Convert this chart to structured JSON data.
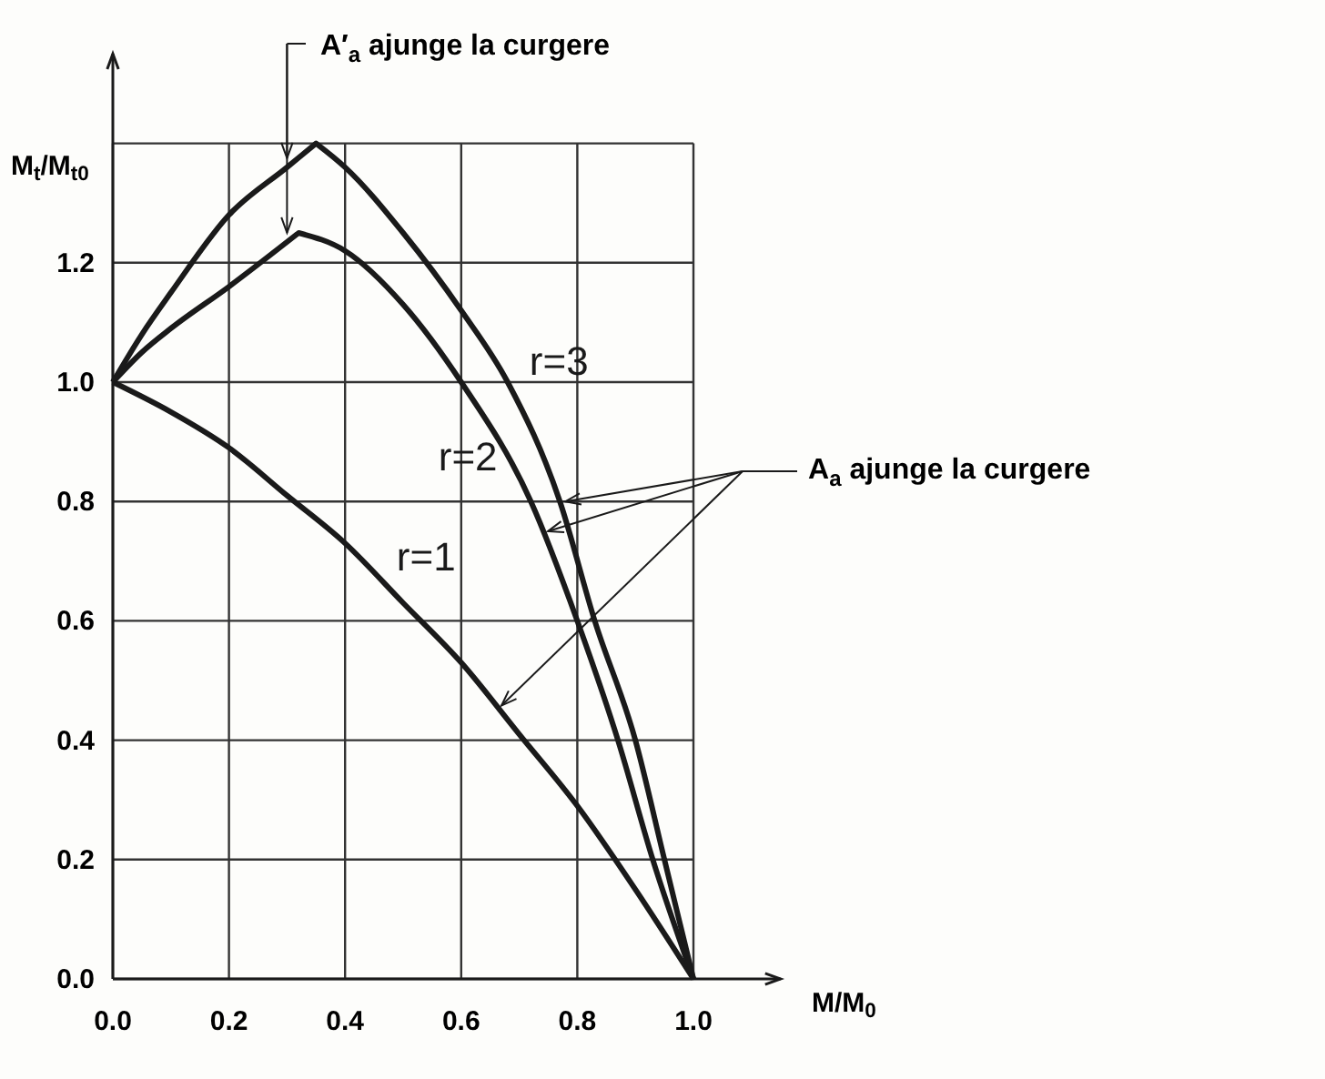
{
  "chart_data": {
    "type": "line",
    "xlabel": "M/M$_{0}$",
    "ylabel": "M$_{t}$/M$_{t0}$",
    "xlim": [
      0,
      1.15
    ],
    "ylim": [
      0,
      1.55
    ],
    "xticks": [
      {
        "value": 0,
        "label": "0.0"
      },
      {
        "value": 0.2,
        "label": "0.2"
      },
      {
        "value": 0.4,
        "label": "0.4"
      },
      {
        "value": 0.6,
        "label": "0.6"
      },
      {
        "value": 0.8,
        "label": "0.8"
      },
      {
        "value": 1.0,
        "label": "1.0"
      }
    ],
    "yticks": [
      {
        "value": 0,
        "label": "0.0"
      },
      {
        "value": 0.2,
        "label": "0.2"
      },
      {
        "value": 0.4,
        "label": "0.4"
      },
      {
        "value": 0.6,
        "label": "0.6"
      },
      {
        "value": 0.8,
        "label": "0.8"
      },
      {
        "value": 1.0,
        "label": "1.0"
      },
      {
        "value": 1.2,
        "label": "1.2"
      },
      {
        "value": 1.4,
        "label": null
      }
    ],
    "grid": true,
    "marker": "none",
    "line_style": "solid",
    "series": [
      {
        "name": "r=1",
        "color": "#1a1a1a",
        "x": [
          0,
          0.1,
          0.2,
          0.3,
          0.4,
          0.5,
          0.6,
          0.7,
          0.8,
          0.9,
          1.0
        ],
        "values": [
          1.0,
          0.95,
          0.89,
          0.81,
          0.73,
          0.63,
          0.53,
          0.41,
          0.29,
          0.15,
          0.0
        ]
      },
      {
        "name": "r=2",
        "color": "#1a1a1a",
        "x": [
          0,
          0.05,
          0.1,
          0.2,
          0.32,
          0.4,
          0.5,
          0.6,
          0.72,
          0.8,
          0.87,
          0.93,
          1.0
        ],
        "values": [
          1.0,
          1.05,
          1.09,
          1.16,
          1.25,
          1.22,
          1.13,
          1.0,
          0.8,
          0.6,
          0.4,
          0.2,
          0.0
        ]
      },
      {
        "name": "r=3",
        "color": "#1a1a1a",
        "x": [
          0,
          0.05,
          0.1,
          0.2,
          0.3,
          0.35,
          0.4,
          0.5,
          0.6,
          0.68,
          0.77,
          0.83,
          0.9,
          0.95,
          1.0
        ],
        "values": [
          1.0,
          1.08,
          1.15,
          1.28,
          1.36,
          1.4,
          1.36,
          1.25,
          1.12,
          1.0,
          0.8,
          0.6,
          0.4,
          0.2,
          0.0
        ]
      }
    ],
    "annotations": [
      {
        "text": "A′$_{a}$ ajunge la curgere",
        "x": 0.3,
        "y": 1.36
      },
      "A$_{a}$ ajunge la curgere"
    ]
  }
}
